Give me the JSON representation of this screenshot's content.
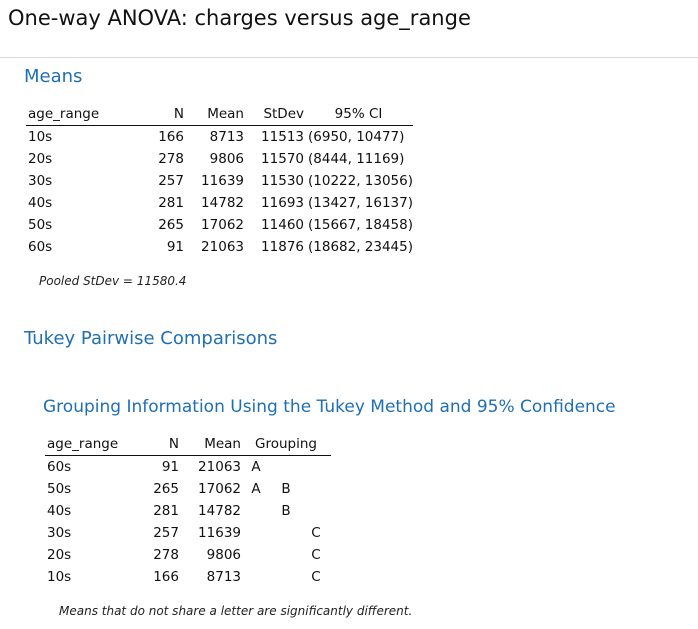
{
  "title": "One-way ANOVA: charges versus age_range",
  "means": {
    "heading": "Means",
    "columns": [
      "age_range",
      "N",
      "Mean",
      "StDev",
      "95% CI"
    ],
    "rows": [
      [
        "10s",
        "166",
        "8713",
        "11513",
        "(6950, 10477)"
      ],
      [
        "20s",
        "278",
        "9806",
        "11570",
        "(8444, 11169)"
      ],
      [
        "30s",
        "257",
        "11639",
        "11530",
        "(10222, 13056)"
      ],
      [
        "40s",
        "281",
        "14782",
        "11693",
        "(13427, 16137)"
      ],
      [
        "50s",
        "265",
        "17062",
        "11460",
        "(15667, 18458)"
      ],
      [
        "60s",
        "91",
        "21063",
        "11876",
        "(18682, 23445)"
      ]
    ],
    "pooled_note": "Pooled StDev = 11580.4"
  },
  "tukey": {
    "heading": "Tukey Pairwise Comparisons",
    "grouping": {
      "heading": "Grouping Information Using the Tukey Method and 95% Confidence",
      "columns": [
        "age_range",
        "N",
        "Mean",
        "Grouping"
      ],
      "rows": [
        {
          "age_range": "60s",
          "n": "91",
          "mean": "21063",
          "groups": [
            "A",
            "",
            ""
          ]
        },
        {
          "age_range": "50s",
          "n": "265",
          "mean": "17062",
          "groups": [
            "A",
            "B",
            ""
          ]
        },
        {
          "age_range": "40s",
          "n": "281",
          "mean": "14782",
          "groups": [
            "",
            "B",
            ""
          ]
        },
        {
          "age_range": "30s",
          "n": "257",
          "mean": "11639",
          "groups": [
            "",
            "",
            "C"
          ]
        },
        {
          "age_range": "20s",
          "n": "278",
          "mean": "9806",
          "groups": [
            "",
            "",
            "C"
          ]
        },
        {
          "age_range": "10s",
          "n": "166",
          "mean": "8713",
          "groups": [
            "",
            "",
            "C"
          ]
        }
      ],
      "note": "Means that do not share a letter are significantly different."
    }
  },
  "colors": {
    "heading": "#1f6fb3",
    "text": "#111111",
    "rule": "#d9d9d9"
  }
}
